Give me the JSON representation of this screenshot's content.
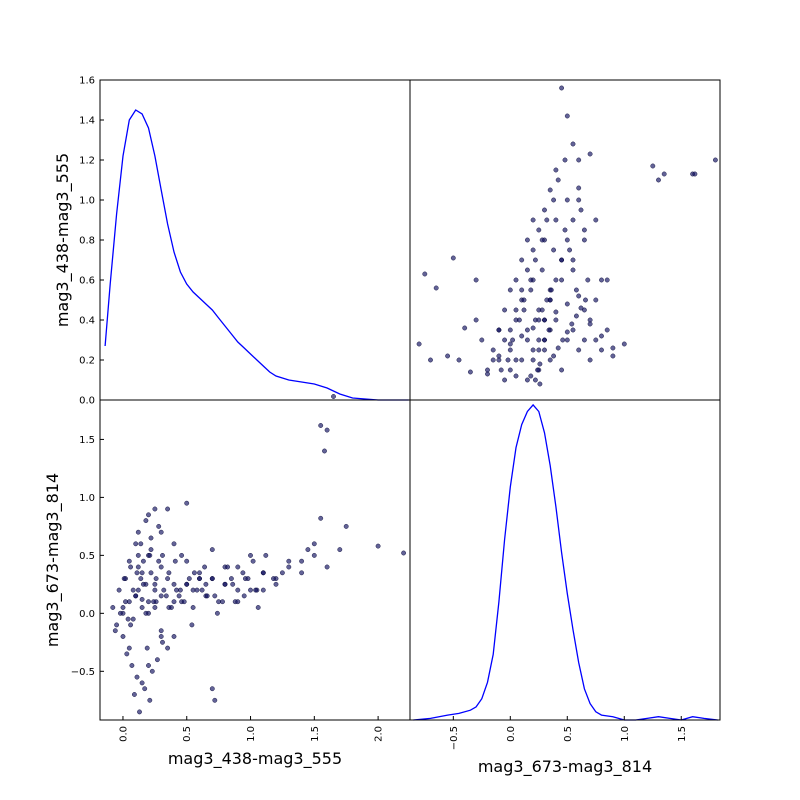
{
  "chart_data": {
    "type": "scatter_matrix",
    "variables": [
      "mag3_438-mag3_555",
      "mag3_673-mag3_814"
    ],
    "xlim": [
      [
        -0.18,
        2.25
      ],
      [
        -0.88,
        1.84
      ]
    ],
    "ylim_scatter": [
      [
        0.0,
        1.6
      ],
      [
        -0.92,
        1.84
      ]
    ],
    "kde_ylim": [
      [
        0.0,
        1.6
      ],
      [
        0.0,
        1.95
      ]
    ],
    "ticks": {
      "left_top_y": [
        "0.0",
        "0.2",
        "0.4",
        "0.6",
        "0.8",
        "1.0",
        "1.2",
        "1.4",
        "1.6"
      ],
      "left_bottom_y": [
        "−0.5",
        "0.0",
        "0.5",
        "1.0",
        "1.5"
      ],
      "bottom_left_x": [
        "0.0",
        "0.5",
        "1.0",
        "1.5",
        "2.0"
      ],
      "bottom_right_x": [
        "−0.5",
        "0.0",
        "0.5",
        "1.0",
        "1.5"
      ]
    },
    "kde_1": {
      "x": [
        -0.14,
        -0.1,
        -0.05,
        0.0,
        0.05,
        0.1,
        0.15,
        0.2,
        0.25,
        0.3,
        0.35,
        0.4,
        0.45,
        0.5,
        0.55,
        0.6,
        0.65,
        0.7,
        0.75,
        0.8,
        0.85,
        0.9,
        0.95,
        1.0,
        1.05,
        1.1,
        1.15,
        1.2,
        1.3,
        1.4,
        1.5,
        1.6,
        1.7,
        1.8,
        2.0,
        2.24
      ],
      "y": [
        0.27,
        0.58,
        0.93,
        1.22,
        1.4,
        1.45,
        1.43,
        1.36,
        1.22,
        1.05,
        0.88,
        0.74,
        0.64,
        0.58,
        0.54,
        0.51,
        0.48,
        0.45,
        0.41,
        0.37,
        0.33,
        0.29,
        0.26,
        0.23,
        0.2,
        0.17,
        0.14,
        0.12,
        0.1,
        0.09,
        0.08,
        0.06,
        0.03,
        0.01,
        0.0,
        0.0
      ]
    },
    "kde_2": {
      "x": [
        -0.85,
        -0.7,
        -0.55,
        -0.45,
        -0.35,
        -0.3,
        -0.25,
        -0.2,
        -0.15,
        -0.1,
        -0.05,
        0.0,
        0.05,
        0.1,
        0.15,
        0.2,
        0.25,
        0.3,
        0.35,
        0.4,
        0.45,
        0.5,
        0.55,
        0.6,
        0.65,
        0.7,
        0.75,
        0.8,
        0.9,
        1.0,
        1.1,
        1.2,
        1.3,
        1.4,
        1.5,
        1.6,
        1.7,
        1.82
      ],
      "y": [
        0.0,
        0.01,
        0.03,
        0.04,
        0.06,
        0.08,
        0.13,
        0.23,
        0.4,
        0.72,
        1.1,
        1.42,
        1.66,
        1.8,
        1.88,
        1.92,
        1.88,
        1.75,
        1.55,
        1.3,
        1.02,
        0.77,
        0.55,
        0.35,
        0.19,
        0.1,
        0.05,
        0.03,
        0.02,
        0.0,
        0.0,
        0.01,
        0.02,
        0.01,
        0.0,
        0.02,
        0.01,
        0.0
      ]
    },
    "scatter_12": {
      "x": [
        -0.08,
        -0.05,
        -0.03,
        0.0,
        0.02,
        0.05,
        0.08,
        0.1,
        0.12,
        0.15,
        0.18,
        0.2,
        0.22,
        0.25,
        0.3,
        0.35,
        0.4,
        0.5,
        0.55,
        0.6,
        0.65,
        0.7,
        0.8,
        0.9,
        1.0,
        1.1,
        1.2,
        1.3,
        1.4,
        1.5,
        1.6,
        1.7,
        2.0,
        2.2,
        0.05,
        0.1,
        0.15,
        0.2,
        0.25,
        0.3,
        0.4,
        0.5,
        0.6,
        0.7,
        0.8,
        0.9,
        1.0,
        1.1,
        0.0,
        0.05,
        0.12,
        0.18,
        0.22,
        0.28,
        0.35,
        0.45,
        0.55,
        0.65,
        0.75,
        0.85,
        0.95,
        1.05,
        1.25,
        1.45,
        1.55,
        1.6,
        1.65,
        1.58,
        0.02,
        0.08,
        0.14,
        0.2,
        0.26,
        0.32,
        0.38,
        0.44,
        0.5,
        0.56,
        0.62,
        0.7,
        0.78,
        0.86,
        0.94,
        1.02,
        1.1,
        1.18,
        -0.02,
        0.04,
        0.1,
        0.16,
        0.22,
        0.28,
        0.34,
        0.4,
        0.46,
        0.52,
        0.58,
        0.64,
        0.72,
        0.8,
        0.88,
        0.96,
        1.04,
        1.12,
        1.2,
        1.3,
        1.4,
        1.5,
        -0.06,
        0.0,
        0.06,
        0.12,
        0.18,
        0.24,
        0.3,
        0.36,
        0.42,
        0.48,
        0.54,
        0.6,
        0.66,
        0.74,
        0.82,
        0.9,
        0.98,
        1.06,
        0.03,
        0.07,
        0.11,
        0.15,
        0.19,
        0.23,
        0.27,
        0.31,
        0.09,
        0.13,
        0.17,
        0.21,
        0.01,
        0.06,
        0.11,
        0.16,
        0.21,
        0.26,
        0.31,
        0.36,
        0.41,
        0.46,
        0.2,
        0.25,
        0.3,
        0.12,
        0.14,
        0.5,
        0.7,
        0.72,
        0.4,
        0.3,
        0.35,
        0.2,
        0.25,
        0.15,
        1.55,
        1.75
      ],
      "y": [
        0.05,
        -0.1,
        0.2,
        0.0,
        0.3,
        0.1,
        -0.05,
        0.15,
        0.4,
        0.05,
        0.25,
        0.1,
        0.55,
        0.2,
        0.15,
        0.3,
        0.1,
        0.25,
        0.2,
        0.35,
        0.15,
        0.3,
        0.25,
        0.4,
        0.2,
        0.35,
        0.3,
        0.45,
        0.35,
        0.5,
        0.4,
        0.55,
        0.58,
        0.52,
        0.45,
        0.6,
        0.35,
        0.5,
        0.25,
        0.4,
        0.6,
        0.45,
        0.3,
        0.55,
        0.4,
        0.2,
        0.5,
        0.35,
        -0.2,
        -0.3,
        0.7,
        0.8,
        0.65,
        0.75,
        0.9,
        0.2,
        0.05,
        0.25,
        0.1,
        0.3,
        0.15,
        0.2,
        0.35,
        0.55,
        1.62,
        1.58,
        1.87,
        1.4,
        0.1,
        0.2,
        0.3,
        0.0,
        0.1,
        0.2,
        0.05,
        0.15,
        0.25,
        0.35,
        0.2,
        0.3,
        0.1,
        0.25,
        0.35,
        0.45,
        0.2,
        0.3,
        0.0,
        -0.05,
        0.15,
        0.25,
        0.35,
        0.45,
        0.15,
        0.25,
        0.1,
        0.3,
        0.2,
        0.4,
        0.15,
        0.25,
        0.1,
        0.3,
        0.2,
        0.5,
        0.25,
        0.4,
        0.45,
        0.6,
        -0.15,
        0.05,
        -0.1,
        0.2,
        0.0,
        0.1,
        -0.2,
        0.05,
        0.2,
        0.1,
        -0.1,
        0.3,
        0.15,
        0.0,
        0.4,
        0.1,
        0.3,
        0.05,
        -0.35,
        -0.45,
        -0.55,
        -0.6,
        -0.3,
        -0.5,
        -0.4,
        -0.25,
        -0.7,
        -0.85,
        -0.65,
        -0.75,
        0.3,
        0.4,
        0.35,
        0.45,
        0.5,
        0.3,
        0.5,
        0.35,
        0.45,
        0.5,
        0.85,
        0.9,
        0.7,
        0.5,
        0.6,
        0.95,
        -0.65,
        -0.75,
        -0.2,
        -0.15,
        -0.3,
        -0.45,
        0.05,
        0.12,
        0.82,
        0.75
      ]
    },
    "scatter_21": {
      "x": [
        -0.8,
        -0.75,
        -0.7,
        -0.65,
        -0.55,
        -0.5,
        -0.45,
        -0.4,
        -0.35,
        -0.3,
        -0.25,
        -0.2,
        -0.15,
        -0.1,
        -0.05,
        0.0,
        0.05,
        0.1,
        0.15,
        0.2,
        0.25,
        0.3,
        0.35,
        0.4,
        0.45,
        0.5,
        0.55,
        0.6,
        0.65,
        0.7,
        0.75,
        0.8,
        0.85,
        0.9,
        1.0,
        1.25,
        1.3,
        1.35,
        1.6,
        1.62,
        1.8,
        -0.1,
        -0.05,
        0.0,
        0.05,
        0.1,
        0.15,
        0.2,
        0.25,
        0.3,
        0.35,
        0.4,
        0.45,
        0.5,
        0.55,
        0.6,
        0.65,
        0.7,
        -0.08,
        -0.02,
        0.02,
        0.08,
        0.12,
        0.18,
        0.22,
        0.28,
        0.32,
        0.38,
        0.42,
        0.48,
        0.52,
        0.58,
        0.62,
        0.68,
        0.0,
        0.05,
        0.1,
        0.15,
        0.2,
        0.25,
        0.3,
        0.35,
        0.4,
        0.45,
        0.5,
        0.55,
        0.6,
        -0.15,
        -0.1,
        -0.05,
        0.0,
        0.05,
        0.1,
        0.15,
        0.2,
        0.25,
        0.3,
        0.35,
        0.4,
        0.45,
        0.5,
        0.55,
        0.6,
        0.65,
        0.7,
        0.75,
        0.8,
        0.2,
        0.25,
        0.3,
        0.35,
        0.22,
        0.28,
        0.32,
        0.36,
        0.24,
        0.3,
        0.34,
        0.26,
        0.38,
        0.42,
        0.46,
        0.5,
        0.54,
        0.58,
        0.62,
        0.66,
        -0.3,
        -0.2,
        -0.1,
        0.0,
        0.1,
        0.2,
        0.3,
        0.4,
        0.5,
        0.6,
        0.7,
        0.8,
        0.9,
        0.05,
        0.15,
        0.25,
        0.35,
        0.45,
        0.55,
        0.65,
        0.75,
        0.85,
        0.12,
        0.18,
        0.28,
        0.38,
        0.48,
        0.18,
        0.22,
        0.26
      ],
      "y": [
        0.28,
        0.63,
        0.2,
        0.56,
        0.22,
        0.71,
        0.2,
        0.36,
        0.14,
        0.4,
        0.3,
        0.13,
        0.2,
        0.35,
        0.1,
        0.15,
        0.12,
        0.2,
        0.1,
        0.25,
        0.15,
        0.3,
        0.2,
        0.4,
        0.15,
        0.3,
        0.35,
        0.25,
        0.45,
        0.2,
        0.3,
        0.25,
        0.35,
        0.22,
        0.28,
        1.17,
        1.1,
        1.13,
        1.13,
        1.13,
        1.2,
        0.2,
        0.3,
        0.25,
        0.4,
        0.5,
        0.35,
        0.6,
        0.45,
        0.8,
        0.55,
        0.9,
        0.7,
        1.0,
        0.65,
        1.2,
        0.85,
        1.23,
        0.15,
        0.2,
        0.3,
        0.4,
        0.5,
        0.6,
        0.7,
        0.8,
        0.9,
        1.0,
        1.1,
        1.2,
        0.75,
        0.55,
        0.95,
        0.6,
        0.35,
        0.45,
        0.55,
        0.65,
        0.75,
        0.85,
        0.95,
        1.05,
        1.15,
        1.56,
        1.42,
        1.28,
        1.06,
        0.25,
        0.35,
        0.45,
        0.55,
        0.6,
        0.7,
        0.8,
        0.9,
        0.3,
        0.4,
        0.5,
        0.6,
        0.7,
        0.8,
        0.9,
        1.0,
        0.3,
        0.4,
        0.5,
        0.6,
        0.2,
        0.25,
        0.3,
        0.35,
        0.4,
        0.45,
        0.5,
        0.55,
        0.15,
        0.25,
        0.35,
        0.18,
        0.22,
        0.26,
        0.3,
        0.34,
        0.38,
        0.42,
        0.46,
        0.5,
        0.6,
        0.15,
        0.22,
        0.28,
        0.32,
        0.36,
        0.4,
        0.44,
        0.48,
        0.52,
        0.38,
        0.32,
        0.26,
        0.2,
        0.3,
        0.4,
        0.5,
        0.6,
        0.7,
        0.8,
        0.9,
        0.6,
        0.45,
        0.55,
        0.65,
        0.75,
        0.85,
        0.12,
        0.1,
        0.08
      ]
    },
    "xlabels": [
      "mag3_438-mag3_555",
      "mag3_673-mag3_814"
    ],
    "ylabels": [
      "mag3_438-mag3_555",
      "mag3_673-mag3_814"
    ]
  }
}
